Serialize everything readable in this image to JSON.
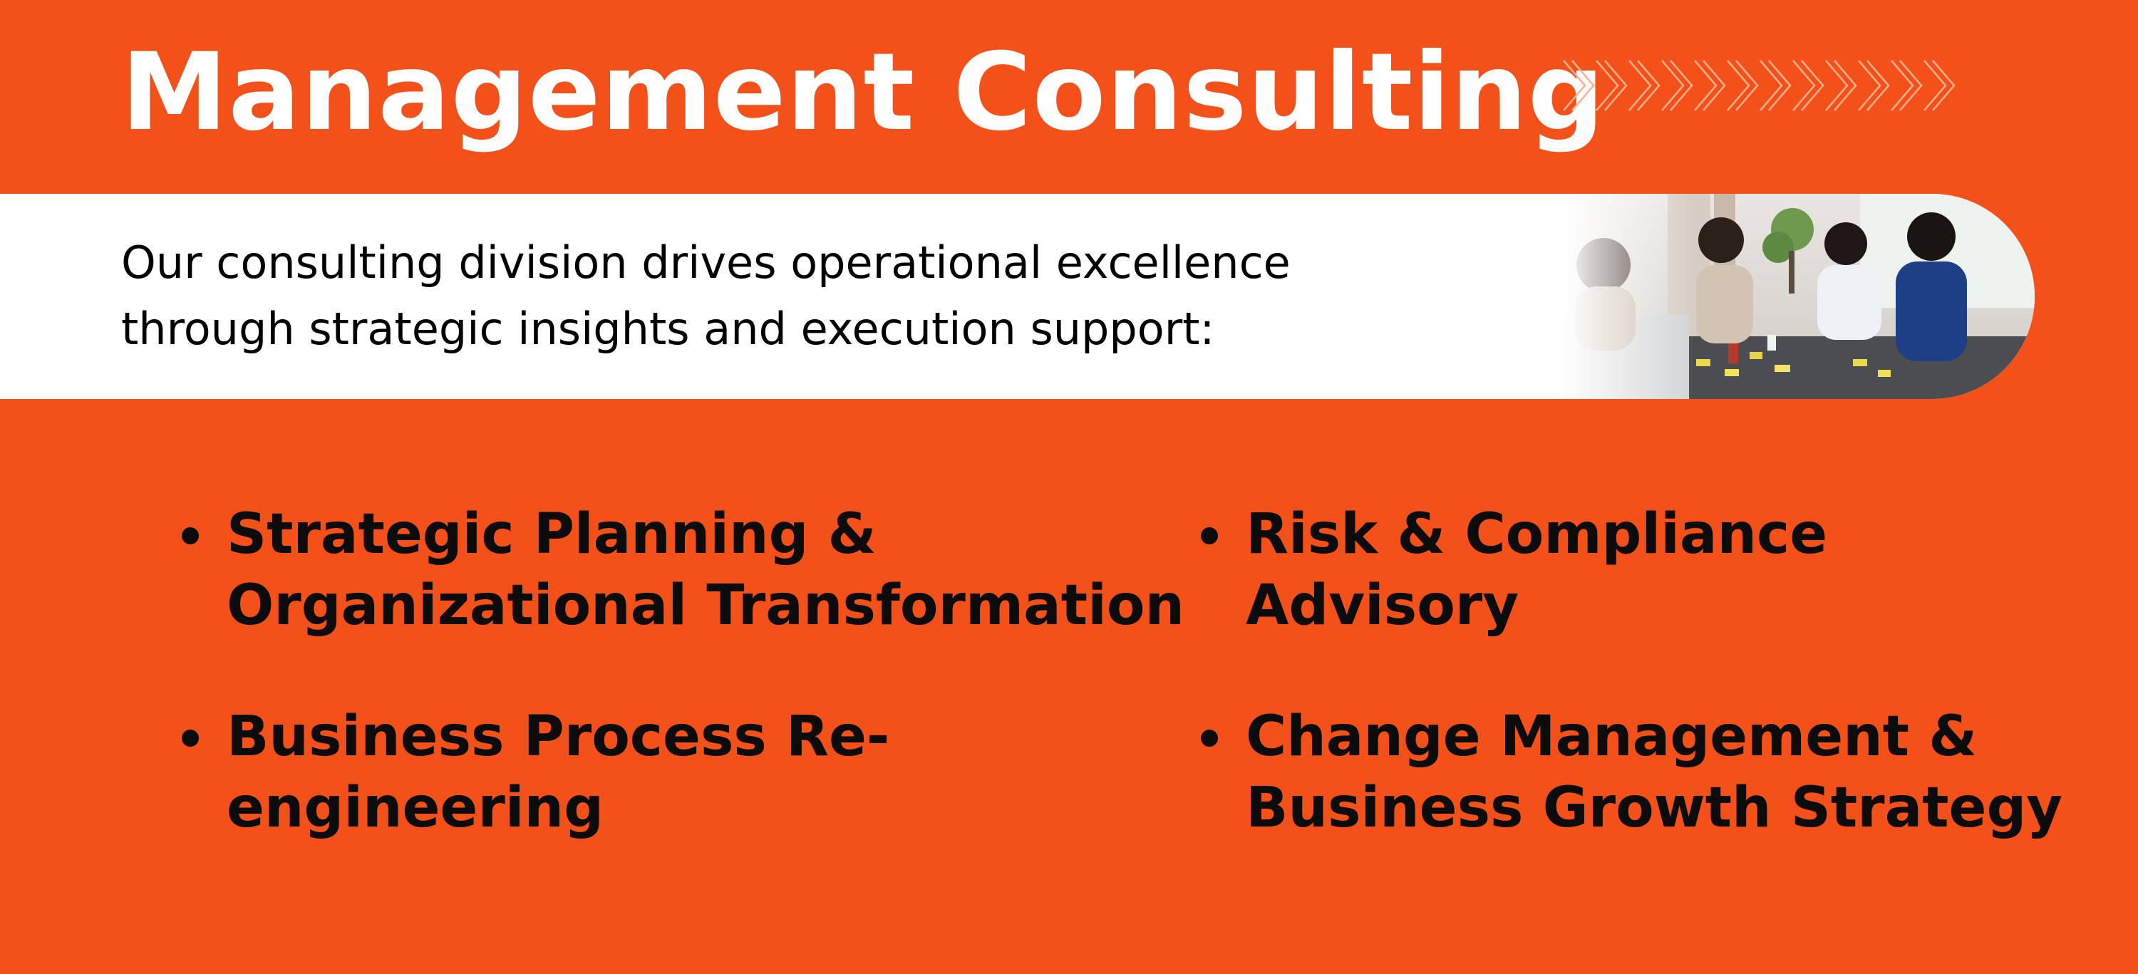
{
  "header": {
    "title": "Management Consulting"
  },
  "intro": {
    "line1": "Our consulting division drives operational excellence",
    "line2": "through strategic insights and execution support:"
  },
  "decor": {
    "chevron_count": 12,
    "chevron_icon": "chevron-right-outline-icon",
    "photo_icon": "team-meeting-photo"
  },
  "services": [
    {
      "line1": "Strategic Planning &",
      "line2": "Organizational Transformation"
    },
    {
      "line1": "Risk & Compliance",
      "line2": "Advisory"
    },
    {
      "line1": "Business Process Re-",
      "line2": "engineering"
    },
    {
      "line1": "Change Management &",
      "line2": "Business Growth Strategy"
    }
  ],
  "colors": {
    "background": "#f4511a",
    "title_text": "#ffffff",
    "band": "#ffffff",
    "service_text": "#0c0c0c"
  }
}
